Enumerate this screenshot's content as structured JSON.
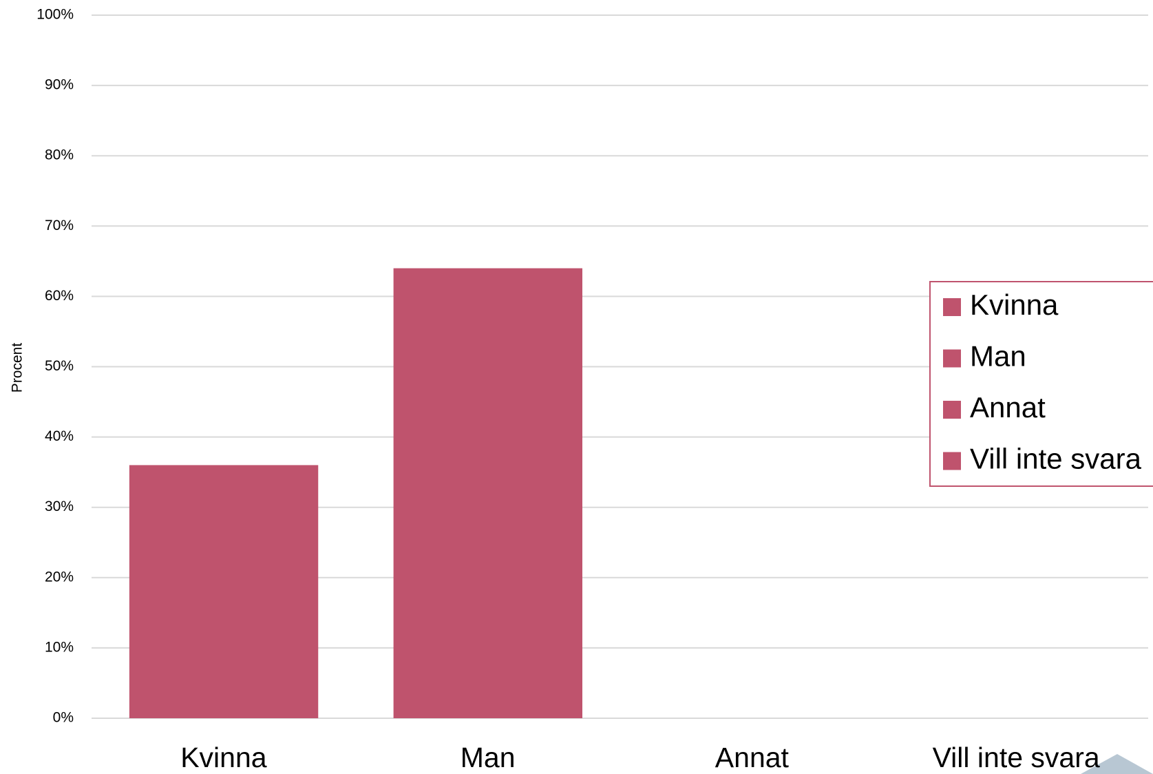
{
  "chart_data": {
    "type": "bar",
    "y_label": "Procent",
    "categories": [
      "Kvinna",
      "Man",
      "Annat",
      "Vill inte svara"
    ],
    "values": [
      36,
      64,
      0,
      0
    ],
    "color": "#bf536d",
    "ylim": [
      0,
      100
    ],
    "yticks": [
      {
        "value": 0,
        "label": "0%"
      },
      {
        "value": 10,
        "label": "10%"
      },
      {
        "value": 20,
        "label": "20%"
      },
      {
        "value": 30,
        "label": "30%"
      },
      {
        "value": 40,
        "label": "40%"
      },
      {
        "value": 50,
        "label": "50%"
      },
      {
        "value": 60,
        "label": "60%"
      },
      {
        "value": 70,
        "label": "70%"
      },
      {
        "value": 80,
        "label": "80%"
      },
      {
        "value": 90,
        "label": "90%"
      },
      {
        "value": 100,
        "label": "100%"
      }
    ],
    "grid": true,
    "legend": "right"
  }
}
